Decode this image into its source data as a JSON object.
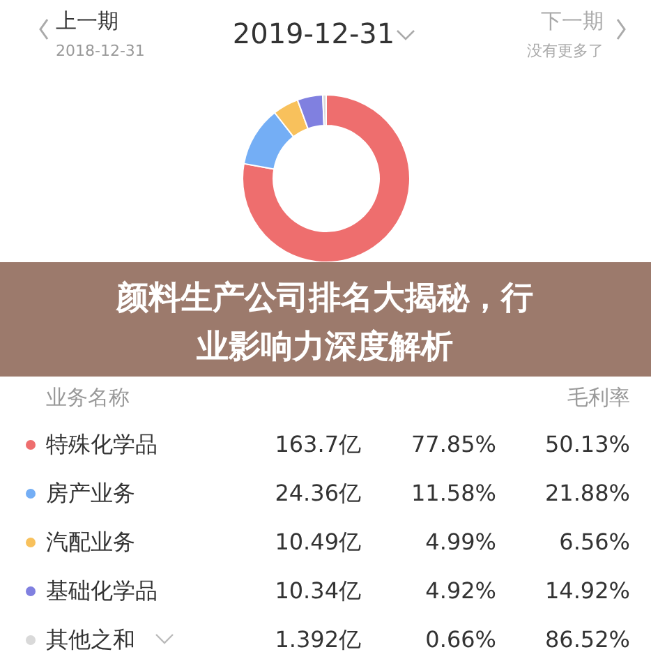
{
  "chart_data": {
    "type": "donut",
    "title": "颜料生产公司排名大揭秘，行业影响力深度解析",
    "subtitle": "2019-12-31",
    "categories": [
      "特殊化学品",
      "房产业务",
      "汽配业务",
      "基础化学品",
      "其他之和"
    ],
    "values": [
      77.85,
      11.58,
      4.99,
      4.92,
      0.66
    ],
    "colors": [
      "#ee6e6e",
      "#74aef5",
      "#f8c15c",
      "#8080e0",
      "#d9d9d9"
    ],
    "legend": "bottom",
    "value_labels": [
      "77.85%",
      "11.58%",
      "4.99%",
      "4.92%",
      "0.66%"
    ],
    "annotations": [
      "上一期",
      "2018-12-31",
      "下一期",
      "没有更多了",
      "业务名称",
      "毛利率",
      "163.7亿",
      "24.36亿",
      "10.49亿",
      "10.34亿",
      "1.392亿",
      "50.13%",
      "21.88%",
      "6.56%",
      "14.92%",
      "86.52%"
    ]
  }
}
